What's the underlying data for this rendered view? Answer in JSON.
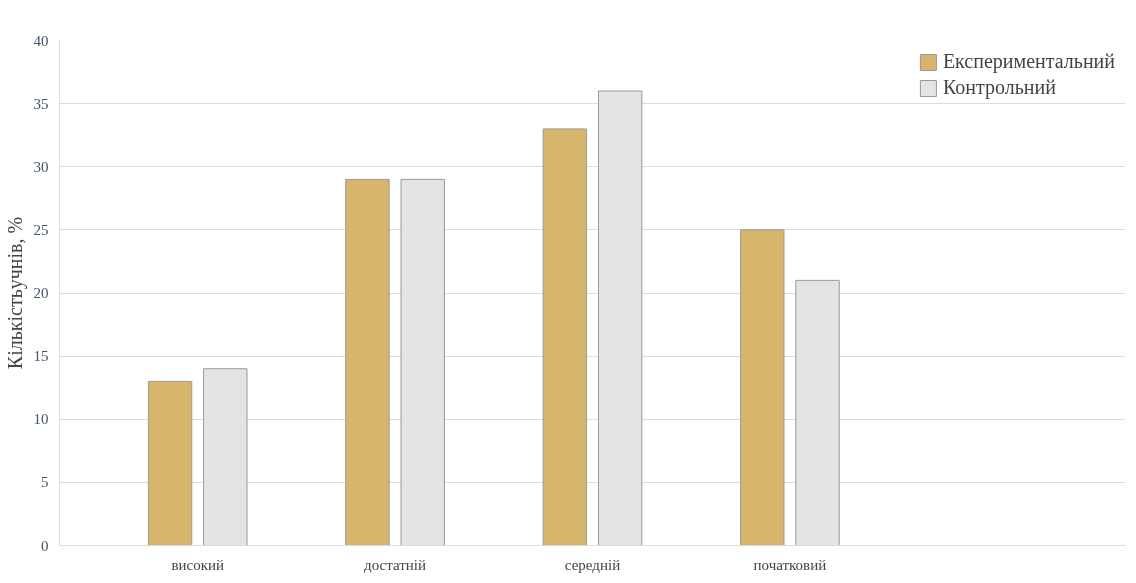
{
  "chart_data": {
    "type": "bar",
    "ylabel": "Кількістьучнів, %",
    "categories": [
      "високий",
      "достатній",
      "середній",
      "початковий"
    ],
    "series": [
      {
        "name": "Експериментальний",
        "color": "#d8b56c",
        "values": [
          13,
          29,
          33,
          25
        ]
      },
      {
        "name": "Контрольний",
        "color": "#e4e4e4",
        "values": [
          14,
          29,
          36,
          21
        ]
      }
    ],
    "ylim": [
      0,
      40
    ],
    "yticks": [
      0,
      5,
      10,
      15,
      20,
      25,
      30,
      35,
      40
    ],
    "grid": "y",
    "legend": "top right"
  }
}
